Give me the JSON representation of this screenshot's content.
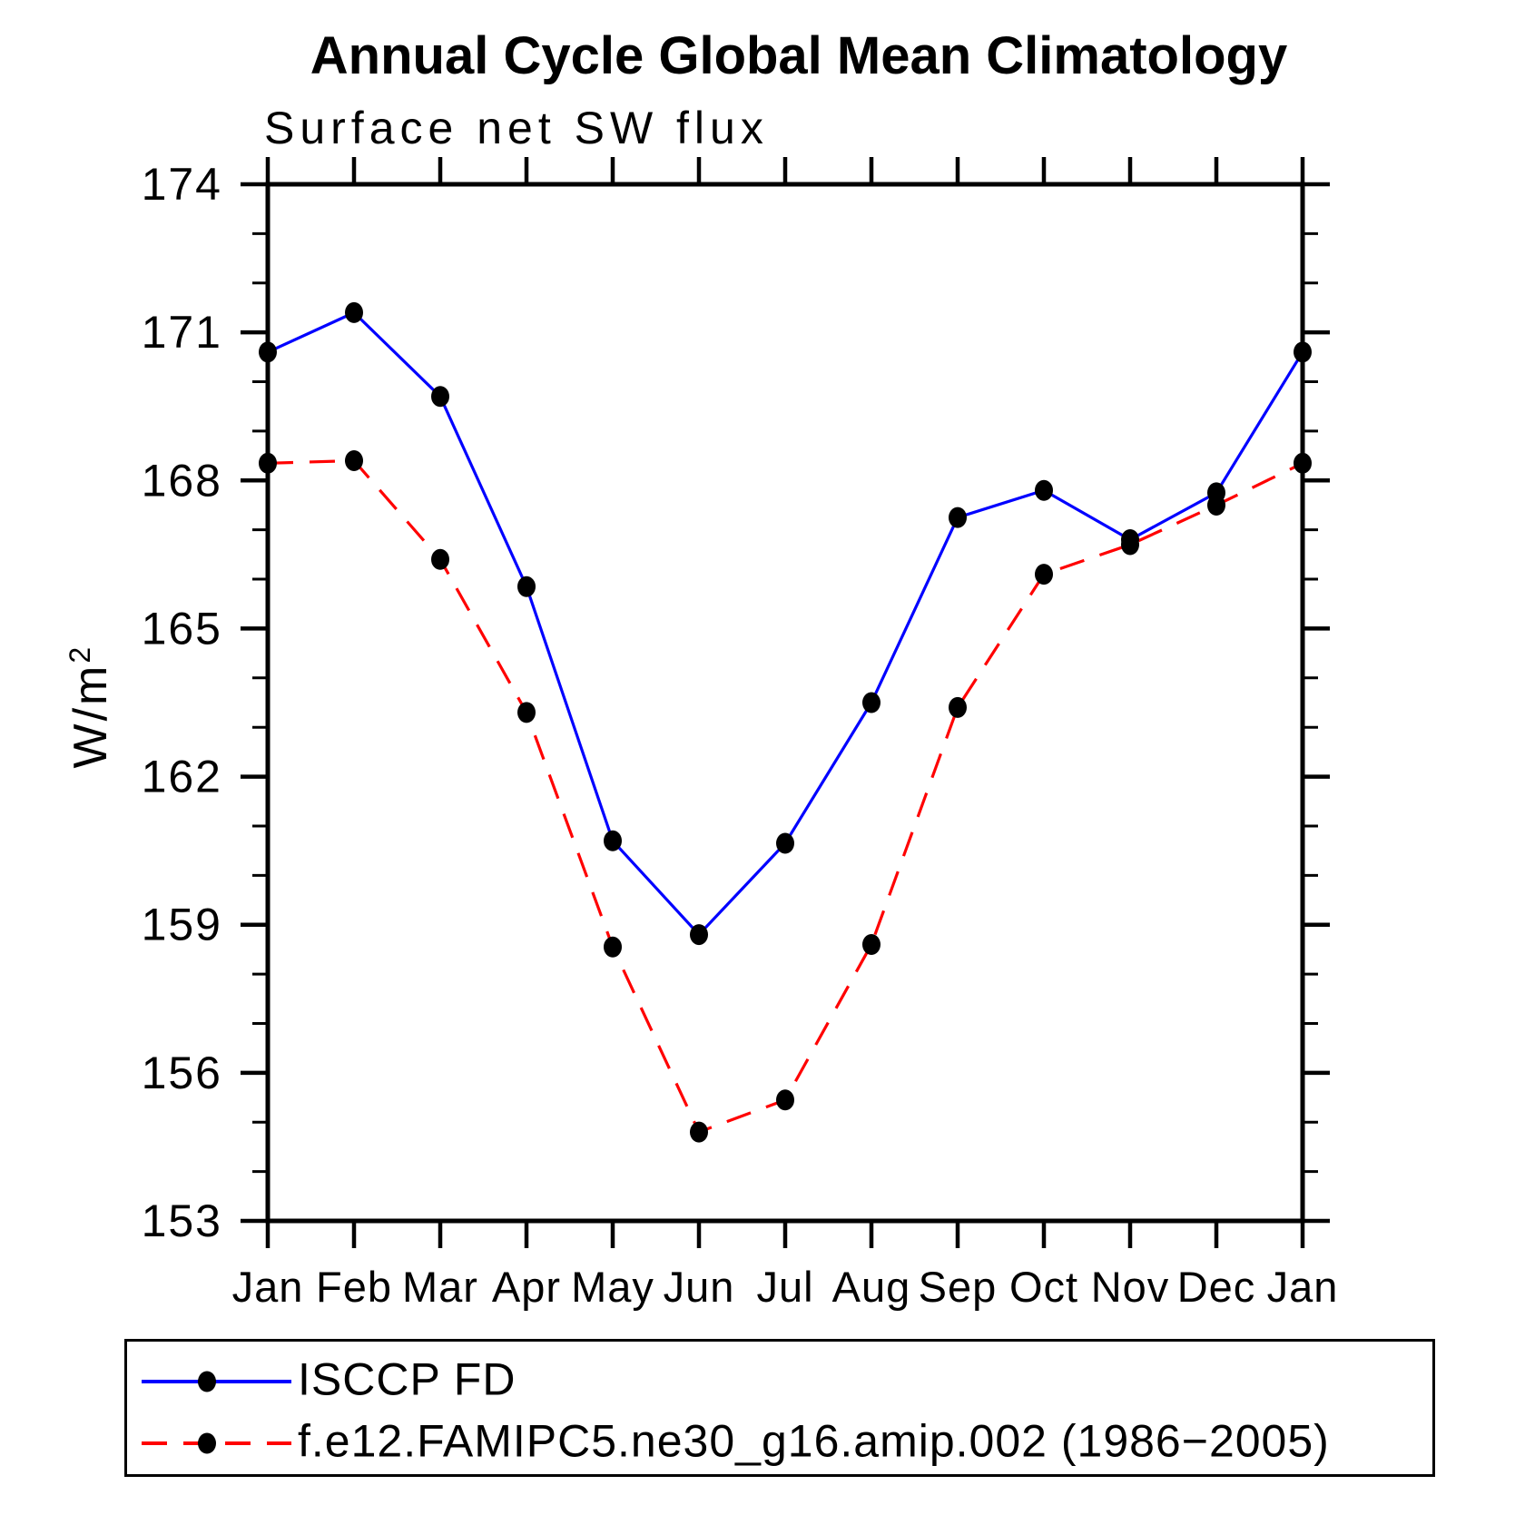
{
  "title": "Annual Cycle Global Mean Climatology",
  "subtitle": "Surface net SW flux",
  "y_axis": {
    "label_base": "W/m",
    "label_exponent": "2",
    "tick_labels": [
      "153",
      "156",
      "159",
      "162",
      "165",
      "168",
      "171",
      "174"
    ]
  },
  "x_axis": {
    "tick_labels": [
      "Jan",
      "Feb",
      "Mar",
      "Apr",
      "May",
      "Jun",
      "Jul",
      "Aug",
      "Sep",
      "Oct",
      "Nov",
      "Dec",
      "Jan"
    ]
  },
  "colors": {
    "obs_line": "#0000ff",
    "model_line": "#ff0000",
    "marker": "#000000",
    "axis": "#000000",
    "background": "#ffffff"
  },
  "chart_data": {
    "type": "line",
    "x": [
      "Jan",
      "Feb",
      "Mar",
      "Apr",
      "May",
      "Jun",
      "Jul",
      "Aug",
      "Sep",
      "Oct",
      "Nov",
      "Dec",
      "Jan"
    ],
    "ylim": [
      153,
      174
    ],
    "ytick_major_step": 3,
    "ytick_minor_step": 1,
    "yticks": [
      153,
      156,
      159,
      162,
      165,
      168,
      171,
      174
    ],
    "grid": false,
    "legend_position": "bottom",
    "marker": "filled-circle",
    "series": [
      {
        "name": "ISCCP FD",
        "style": "solid",
        "color": "#0000ff",
        "values": [
          170.6,
          171.4,
          169.7,
          165.85,
          160.7,
          158.8,
          160.65,
          163.5,
          167.25,
          167.8,
          166.8,
          167.75,
          170.6
        ]
      },
      {
        "name": "f.e12.FAMIPC5.ne30_g16.amip.002 (1986−2005)",
        "style": "dashed",
        "color": "#ff0000",
        "values": [
          168.35,
          168.4,
          166.4,
          163.3,
          158.55,
          154.8,
          155.45,
          158.6,
          163.4,
          166.1,
          166.7,
          167.5,
          168.35
        ]
      }
    ]
  }
}
